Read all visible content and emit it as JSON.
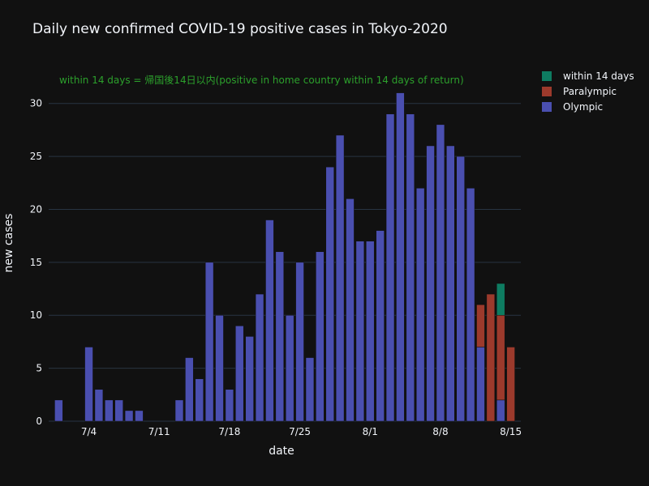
{
  "chart_data": {
    "type": "bar",
    "barmode": "stack",
    "title": "Daily new confirmed COVID-19 positive cases in Tokyo-2020",
    "xlabel": "date",
    "ylabel": "new cases",
    "ylim": [
      0,
      32.5
    ],
    "yticks": [
      0,
      5,
      10,
      15,
      20,
      25,
      30
    ],
    "xticks": [
      {
        "date": "2021-07-04",
        "label": "7/4"
      },
      {
        "date": "2021-07-11",
        "label": "7/11"
      },
      {
        "date": "2021-07-18",
        "label": "7/18"
      },
      {
        "date": "2021-07-25",
        "label": "7/25"
      },
      {
        "date": "2021-08-01",
        "label": "8/1"
      },
      {
        "date": "2021-08-08",
        "label": "8/8"
      },
      {
        "date": "2021-08-15",
        "label": "8/15"
      }
    ],
    "x_range": [
      "2021-06-30",
      "2021-08-16"
    ],
    "grid": true,
    "legend_position": "top-right",
    "annotation": {
      "text": "within 14 days = 帰国後14日以内(positive in home country within 14 days of return)",
      "color": "#2ca02c"
    },
    "colors": {
      "background": "#111111",
      "grid": "#283442",
      "text": "#f2f5fa"
    },
    "dates": [
      "2021-07-01",
      "2021-07-02",
      "2021-07-03",
      "2021-07-04",
      "2021-07-05",
      "2021-07-06",
      "2021-07-07",
      "2021-07-08",
      "2021-07-09",
      "2021-07-10",
      "2021-07-11",
      "2021-07-12",
      "2021-07-13",
      "2021-07-14",
      "2021-07-15",
      "2021-07-16",
      "2021-07-17",
      "2021-07-18",
      "2021-07-19",
      "2021-07-20",
      "2021-07-21",
      "2021-07-22",
      "2021-07-23",
      "2021-07-24",
      "2021-07-25",
      "2021-07-26",
      "2021-07-27",
      "2021-07-28",
      "2021-07-29",
      "2021-07-30",
      "2021-07-31",
      "2021-08-01",
      "2021-08-02",
      "2021-08-03",
      "2021-08-04",
      "2021-08-05",
      "2021-08-06",
      "2021-08-07",
      "2021-08-08",
      "2021-08-09",
      "2021-08-10",
      "2021-08-11",
      "2021-08-12",
      "2021-08-13",
      "2021-08-14",
      "2021-08-15",
      "2021-08-16"
    ],
    "series": [
      {
        "name": "Olympic",
        "color": "#4a4fb0",
        "values": [
          2,
          0,
          0,
          7,
          3,
          2,
          2,
          1,
          1,
          0,
          0,
          0,
          2,
          6,
          4,
          15,
          10,
          3,
          9,
          8,
          12,
          19,
          16,
          10,
          15,
          6,
          16,
          24,
          27,
          21,
          17,
          17,
          18,
          29,
          31,
          29,
          22,
          26,
          28,
          26,
          25,
          22,
          7,
          0,
          2,
          0,
          0
        ]
      },
      {
        "name": "Paralympic",
        "color": "#9c3a2c",
        "values": [
          0,
          0,
          0,
          0,
          0,
          0,
          0,
          0,
          0,
          0,
          0,
          0,
          0,
          0,
          0,
          0,
          0,
          0,
          0,
          0,
          0,
          0,
          0,
          0,
          0,
          0,
          0,
          0,
          0,
          0,
          0,
          0,
          0,
          0,
          0,
          0,
          0,
          0,
          0,
          0,
          0,
          0,
          4,
          12,
          8,
          7,
          0
        ]
      },
      {
        "name": "within 14 days",
        "color": "#0e7c61",
        "values": [
          0,
          0,
          0,
          0,
          0,
          0,
          0,
          0,
          0,
          0,
          0,
          0,
          0,
          0,
          0,
          0,
          0,
          0,
          0,
          0,
          0,
          0,
          0,
          0,
          0,
          0,
          0,
          0,
          0,
          0,
          0,
          0,
          0,
          0,
          0,
          0,
          0,
          0,
          0,
          0,
          0,
          0,
          0,
          0,
          3,
          0,
          0
        ]
      }
    ],
    "legend_order": [
      "within 14 days",
      "Paralympic",
      "Olympic"
    ]
  }
}
